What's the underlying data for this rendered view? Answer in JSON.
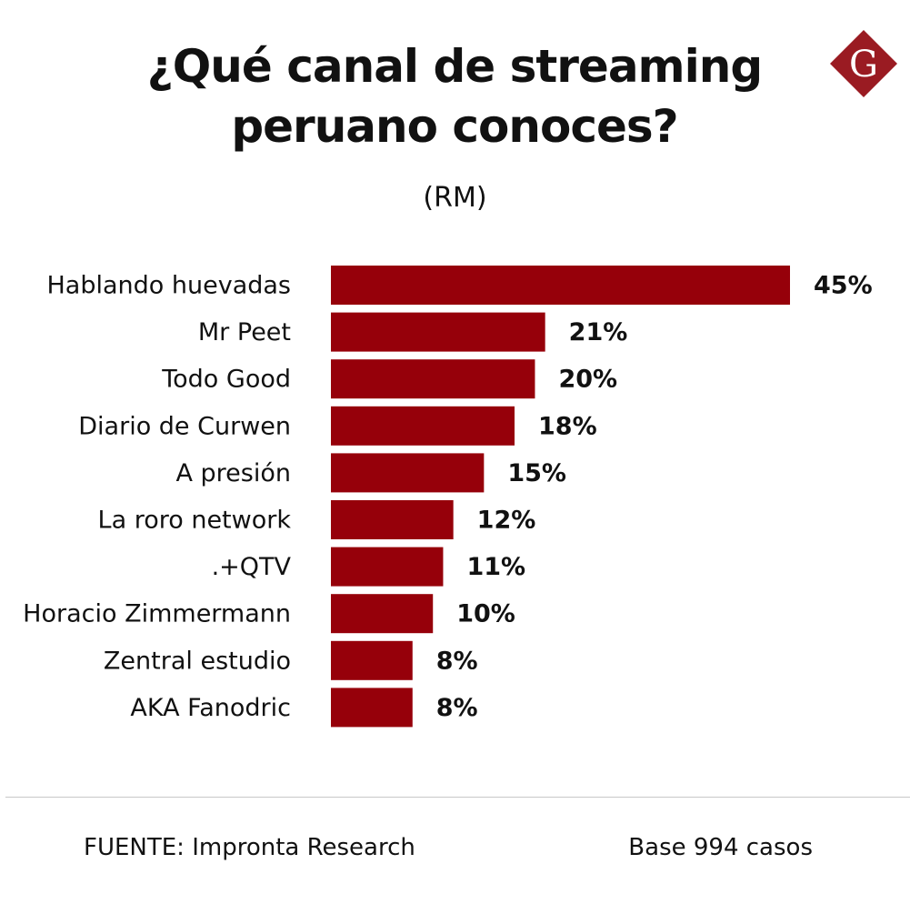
{
  "header": {
    "title_line1": "¿Qué canal de streaming",
    "title_line2": "peruano conoces?",
    "subtitle": "(RM)",
    "logo_letter": "G"
  },
  "footer": {
    "source": "FUENTE: Impronta Research",
    "base": "Base 994 casos"
  },
  "colors": {
    "bar": "#96000a",
    "logo": "#9a1b22"
  },
  "chart_data": {
    "type": "bar",
    "orientation": "horizontal",
    "title": "¿Qué canal de streaming peruano conoces?",
    "subtitle": "(RM)",
    "unit": "%",
    "categories": [
      "Hablando huevadas",
      "Mr Peet",
      "Todo Good",
      "Diario de Curwen",
      "A presión",
      "La roro network",
      ".+QTV",
      "Horacio Zimmermann",
      "Zentral estudio",
      "AKA Fanodric"
    ],
    "values": [
      45,
      21,
      20,
      18,
      15,
      12,
      11,
      10,
      8,
      8
    ],
    "value_labels": [
      "45%",
      "21%",
      "20%",
      "18%",
      "15%",
      "12%",
      "11%",
      "10%",
      "8%",
      "8%"
    ],
    "xlim": [
      0,
      45
    ],
    "grid": false,
    "legend": "none"
  }
}
